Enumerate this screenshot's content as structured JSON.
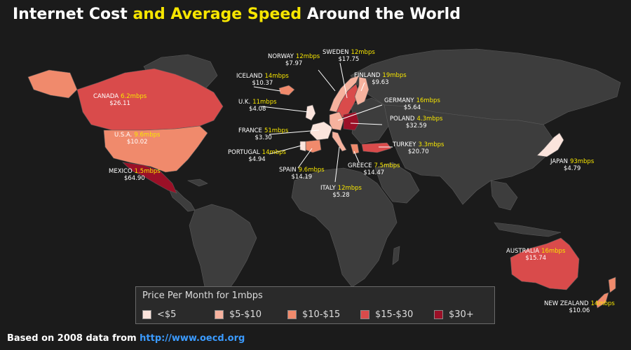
{
  "title": {
    "part1": "Internet Cost ",
    "highlight": "and Average Speed",
    "part2": " Around the World"
  },
  "colors": {
    "background": "#1b1b1b",
    "land": "#3d3d3d",
    "borders": "#5a5a5a",
    "speed": "#f7e600",
    "lt5": "#fbe4dc",
    "b5_10": "#f6b29e",
    "b10_15": "#f08a6c",
    "b15_30": "#d94b4b",
    "gt30": "#9b1027"
  },
  "countries": [
    {
      "id": "norway",
      "name": "NORWAY",
      "speed": "12mbps",
      "price": "$7.97",
      "category": "b5_10"
    },
    {
      "id": "sweden",
      "name": "SWEDEN",
      "speed": "12mbps",
      "price": "$17.75",
      "category": "b15_30"
    },
    {
      "id": "iceland",
      "name": "ICELAND",
      "speed": "14mbps",
      "price": "$10.37",
      "category": "b10_15"
    },
    {
      "id": "finland",
      "name": "FINLAND",
      "speed": "19mbps",
      "price": "$9.63",
      "category": "b5_10"
    },
    {
      "id": "canada",
      "name": "CANADA",
      "speed": "6.2mbps",
      "price": "$26.11",
      "category": "b15_30"
    },
    {
      "id": "uk",
      "name": "U.K.",
      "speed": "11mbps",
      "price": "$4.08",
      "category": "lt5"
    },
    {
      "id": "germany",
      "name": "GERMANY",
      "speed": "16mbps",
      "price": "$5.64",
      "category": "b5_10"
    },
    {
      "id": "france",
      "name": "FRANCE",
      "speed": "51mbps",
      "price": "$3.30",
      "category": "lt5"
    },
    {
      "id": "poland",
      "name": "POLAND",
      "speed": "4.3mbps",
      "price": "$32.59",
      "category": "gt30"
    },
    {
      "id": "usa",
      "name": "U.S.A.",
      "speed": "9.6mbps",
      "price": "$10.02",
      "category": "b10_15"
    },
    {
      "id": "portugal",
      "name": "PORTUGAL",
      "speed": "14mbps",
      "price": "$4.94",
      "category": "lt5"
    },
    {
      "id": "turkey",
      "name": "TURKEY",
      "speed": "3.3mbps",
      "price": "$20.70",
      "category": "b15_30"
    },
    {
      "id": "mexico",
      "name": "MEXICO",
      "speed": "1.5mbps",
      "price": "$64.90",
      "category": "gt30"
    },
    {
      "id": "spain",
      "name": "SPAIN",
      "speed": "9.6mbps",
      "price": "$14.19",
      "category": "b10_15"
    },
    {
      "id": "greece",
      "name": "GREECE",
      "speed": "7.5mbps",
      "price": "$14.47",
      "category": "b10_15"
    },
    {
      "id": "japan",
      "name": "JAPAN",
      "speed": "93mbps",
      "price": "$4.79",
      "category": "lt5"
    },
    {
      "id": "italy",
      "name": "ITALY",
      "speed": "12mbps",
      "price": "$5.28",
      "category": "b5_10"
    },
    {
      "id": "australia",
      "name": "AUSTRALIA",
      "speed": "16mbps",
      "price": "$15.74",
      "category": "b15_30"
    },
    {
      "id": "newzealand",
      "name": "NEW ZEALAND",
      "speed": "14mbps",
      "price": "$10.06",
      "category": "b10_15"
    }
  ],
  "legend": {
    "title": "Price Per Month for 1mbps",
    "items": [
      {
        "label": "<$5",
        "color": "#fbe4dc"
      },
      {
        "label": "$5-$10",
        "color": "#f6b29e"
      },
      {
        "label": "$10-$15",
        "color": "#f08a6c"
      },
      {
        "label": "$15-$30",
        "color": "#d94b4b"
      },
      {
        "label": "$30+",
        "color": "#9b1027"
      }
    ]
  },
  "footer": {
    "text": "Based on 2008 data from ",
    "link": "http://www.oecd.org"
  }
}
